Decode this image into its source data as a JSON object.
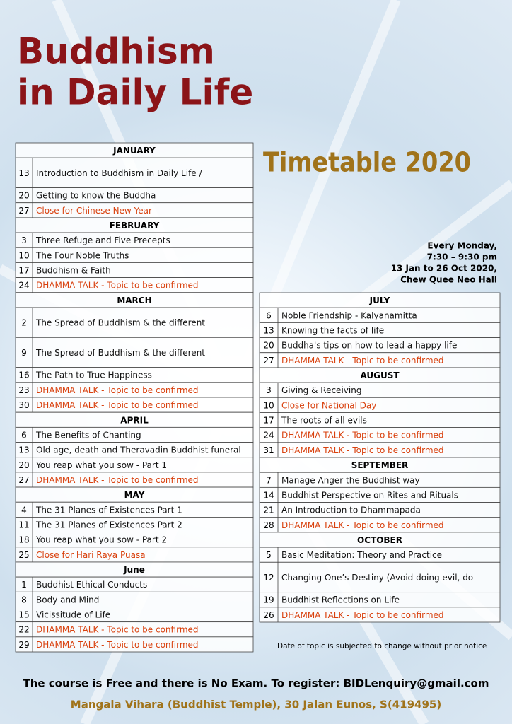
{
  "title": [
    "Buddhism",
    "in Daily Life"
  ],
  "subtitle": "Timetable 2020",
  "schedule_info": [
    "Every Monday,",
    "7:30 – 9:30 pm",
    "13 Jan to 26 Oct 2020,",
    "Chew Quee Neo Hall"
  ],
  "highlight_color": "#d9410e",
  "left_table": [
    {
      "month": "JANUARY",
      "rows": [
        {
          "day": 13,
          "topic": "Introduction to Buddhism in Daily Life /"
        },
        {
          "day": 20,
          "topic": "Getting to know the Buddha"
        },
        {
          "day": 27,
          "topic": "Close for Chinese New Year",
          "highlight": true
        }
      ]
    },
    {
      "month": "FEBRUARY",
      "rows": [
        {
          "day": 3,
          "topic": "Three Refuge and Five Precepts"
        },
        {
          "day": 10,
          "topic": "The Four Noble Truths"
        },
        {
          "day": 17,
          "topic": "Buddhism & Faith"
        },
        {
          "day": 24,
          "topic": "DHAMMA TALK - Topic to be confirmed",
          "highlight": true
        }
      ]
    },
    {
      "month": "MARCH",
      "rows": [
        {
          "day": 2,
          "topic": "The Spread of Buddhism & the different"
        },
        {
          "day": 9,
          "topic": "The Spread of Buddhism & the different"
        },
        {
          "day": 16,
          "topic": "The Path to True Happiness"
        },
        {
          "day": 23,
          "topic": "DHAMMA TALK - Topic to be confirmed",
          "highlight": true
        },
        {
          "day": 30,
          "topic": "DHAMMA TALK - Topic to be confirmed",
          "highlight": true
        }
      ]
    },
    {
      "month": "APRIL",
      "rows": [
        {
          "day": 6,
          "topic": "The Benefits of Chanting"
        },
        {
          "day": 13,
          "topic": "Old age, death and Theravadin Buddhist funeral"
        },
        {
          "day": 20,
          "topic": "You reap what you sow - Part 1"
        },
        {
          "day": 27,
          "topic": "DHAMMA TALK - Topic to be confirmed",
          "highlight": true
        }
      ]
    },
    {
      "month": "MAY",
      "rows": [
        {
          "day": 4,
          "topic": "The 31 Planes of Existences Part 1"
        },
        {
          "day": 11,
          "topic": "The 31 Planes of Existences Part 2"
        },
        {
          "day": 18,
          "topic": "You reap what you sow - Part 2"
        },
        {
          "day": 25,
          "topic": "Close for Hari Raya Puasa",
          "highlight": true
        }
      ]
    },
    {
      "month": "June",
      "rows": [
        {
          "day": 1,
          "topic": "Buddhist Ethical Conducts"
        },
        {
          "day": 8,
          "topic": "Body and Mind"
        },
        {
          "day": 15,
          "topic": "Vicissitude of Life"
        },
        {
          "day": 22,
          "topic": "DHAMMA TALK - Topic to be confirmed",
          "highlight": true
        },
        {
          "day": 29,
          "topic": "DHAMMA TALK - Topic to be confirmed",
          "highlight": true
        }
      ]
    }
  ],
  "right_table": [
    {
      "month": "JULY",
      "rows": [
        {
          "day": 6,
          "topic": "Noble Friendship - Kalyanamitta"
        },
        {
          "day": 13,
          "topic": "Knowing the facts of life"
        },
        {
          "day": 20,
          "topic": "Buddha's tips on how to lead a happy life"
        },
        {
          "day": 27,
          "topic": "DHAMMA TALK - Topic to be confirmed",
          "highlight": true
        }
      ]
    },
    {
      "month": "AUGUST",
      "rows": [
        {
          "day": 3,
          "topic": "Giving & Receiving"
        },
        {
          "day": 10,
          "topic": "Close for National Day",
          "highlight": true
        },
        {
          "day": 17,
          "topic": "The roots of all evils"
        },
        {
          "day": 24,
          "topic": "DHAMMA TALK - Topic to be confirmed",
          "highlight": true
        },
        {
          "day": 31,
          "topic": "DHAMMA TALK - Topic to be confirmed",
          "highlight": true
        }
      ]
    },
    {
      "month": "SEPTEMBER",
      "rows": [
        {
          "day": 7,
          "topic": "Manage Anger the Buddhist way"
        },
        {
          "day": 14,
          "topic": "Buddhist Perspective on Rites and Rituals"
        },
        {
          "day": 21,
          "topic": "An Introduction to Dhammapada"
        },
        {
          "day": 28,
          "topic": "DHAMMA TALK - Topic to be confirmed",
          "highlight": true
        }
      ]
    },
    {
      "month": "OCTOBER",
      "rows": [
        {
          "day": 5,
          "topic": "Basic Meditation: Theory and Practice"
        },
        {
          "day": 12,
          "topic": "Changing One’s Destiny (Avoid doing evil, do"
        },
        {
          "day": 19,
          "topic": "Buddhist Reflections on Life"
        },
        {
          "day": 26,
          "topic": "DHAMMA TALK - Topic to be confirmed",
          "highlight": true
        }
      ]
    }
  ],
  "note": "Date of topic is subjected to change without prior notice",
  "footer": [
    "The course is Free and there is No Exam. To register: BIDLenquiry@gmail.com",
    "Mangala Vihara (Buddhist Temple), 30 Jalan Eunos, S(419495)"
  ]
}
